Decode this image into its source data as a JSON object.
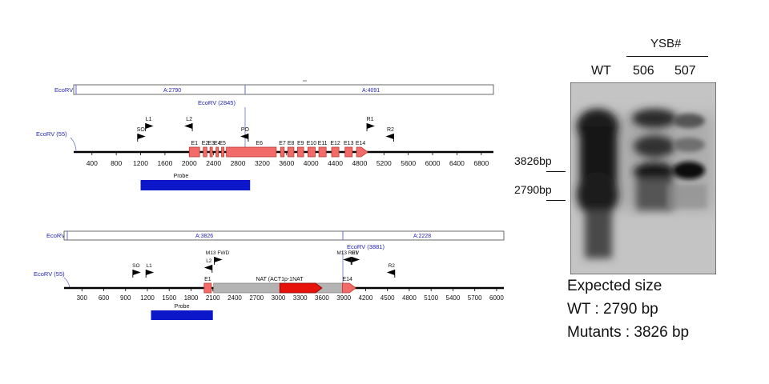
{
  "construct_wt": {
    "restriction_enzyme": "EcoRV",
    "fragment_bar": {
      "enzyme_label": "EcoRV",
      "fragments": [
        "A:2790",
        "A:4091"
      ]
    },
    "sites": {
      "left": "EcoRV (55)",
      "internal": "EcoRV (2845)"
    },
    "axis_ticks": [
      "400",
      "800",
      "1200",
      "1600",
      "2000",
      "2400",
      "2800",
      "3200",
      "3600",
      "4000",
      "4400",
      "4800",
      "5200",
      "5600",
      "6000",
      "6400",
      "6800"
    ],
    "axis_range": [
      100,
      7000
    ],
    "primers": [
      {
        "label": "SO",
        "pos": 1150,
        "dir": "right"
      },
      {
        "label": "L1",
        "pos": 1280,
        "dir": "right"
      },
      {
        "label": "L2",
        "pos": 2050,
        "dir": "left"
      },
      {
        "label": "PO",
        "pos": 2970,
        "dir": "left"
      },
      {
        "label": "R1",
        "pos": 4920,
        "dir": "right"
      },
      {
        "label": "R2",
        "pos": 5360,
        "dir": "left"
      }
    ],
    "exons": [
      {
        "label": "E1",
        "start": 2000,
        "end": 2170
      },
      {
        "label": "E2",
        "start": 2230,
        "end": 2290
      },
      {
        "label": "E3",
        "start": 2340,
        "end": 2380
      },
      {
        "label": "E4",
        "start": 2440,
        "end": 2480
      },
      {
        "label": "E5",
        "start": 2530,
        "end": 2560
      },
      {
        "label": "E6",
        "start": 2610,
        "end": 3430
      },
      {
        "label": "E7",
        "start": 3500,
        "end": 3560
      },
      {
        "label": "E8",
        "start": 3620,
        "end": 3720
      },
      {
        "label": "E9",
        "start": 3780,
        "end": 3880
      },
      {
        "label": "E10",
        "start": 3950,
        "end": 4070
      },
      {
        "label": "E11",
        "start": 4130,
        "end": 4250
      },
      {
        "label": "E12",
        "start": 4340,
        "end": 4460
      },
      {
        "label": "E13",
        "start": 4560,
        "end": 4680
      },
      {
        "label": "E14",
        "start": 4750,
        "end": 4880
      }
    ],
    "probe": {
      "label": "Probe",
      "start": 1200,
      "end": 3000
    }
  },
  "construct_mutant": {
    "fragment_bar": {
      "enzyme_label": "EcoRV",
      "fragments": [
        "A:3826",
        "A:2228"
      ]
    },
    "sites": {
      "left": "EcoRV (55)",
      "internal": "EcoRV (3881)"
    },
    "axis_ticks": [
      "300",
      "600",
      "900",
      "1200",
      "1500",
      "1800",
      "2100",
      "2400",
      "2700",
      "3000",
      "3300",
      "3600",
      "3900",
      "4200",
      "4500",
      "4800",
      "5100",
      "5400",
      "5700",
      "6000"
    ],
    "axis_range": [
      55,
      6100
    ],
    "primers": [
      {
        "label": "SO",
        "pos": 1000,
        "dir": "right"
      },
      {
        "label": "L1",
        "pos": 1180,
        "dir": "right"
      },
      {
        "label": "L2",
        "pos": 2090,
        "dir": "left"
      },
      {
        "label": "M13 FWD",
        "pos": 2120,
        "dir": "right"
      },
      {
        "label": "M13 REV",
        "pos": 4000,
        "dir": "left"
      },
      {
        "label": "R1",
        "pos": 4010,
        "dir": "right"
      },
      {
        "label": "R2",
        "pos": 4600,
        "dir": "left"
      }
    ],
    "exons": [
      {
        "label": "E1",
        "start": 1980,
        "end": 2080
      },
      {
        "label": "E14",
        "start": 3880,
        "end": 4020
      }
    ],
    "cassette": {
      "label": "NAT (ACT1p-1NAT",
      "start": 2110,
      "end": 3880
    },
    "nat_gene": {
      "start": 3020,
      "end": 3600
    },
    "probe": {
      "label": "Probe",
      "start": 1250,
      "end": 2100
    }
  },
  "blot": {
    "group_label": "YSB#",
    "lanes": [
      "WT",
      "506",
      "507"
    ],
    "size_markers": [
      "3826bp",
      "2790bp"
    ]
  },
  "expected": {
    "heading": "Expected size",
    "wt": "WT : 2790 bp",
    "mutants": "Mutants : 3826 bp"
  },
  "colors": {
    "exon_fill": "#f26b6b",
    "exon_stroke": "#c0392b",
    "nat_red": "#e8120c",
    "cassette_gray": "#b3b3b3",
    "probe_blue": "#0b17c9",
    "site_label_blue": "#2525b5",
    "backbone": "#000000"
  }
}
